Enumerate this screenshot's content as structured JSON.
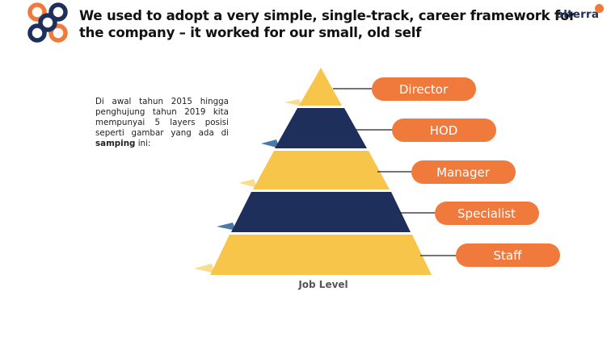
{
  "header": {
    "title_line1": "We used to adopt a very simple, single-track, career framework for",
    "title_line2": "the company – it worked for our small, old self",
    "brand": "alterra",
    "logo_icon": "interlocking-rings-logo",
    "colors": {
      "navy": "#1f2f5c",
      "orange": "#f07a3c",
      "yellow": "#f7c54a"
    }
  },
  "note": {
    "text_before_bold": "Di awal tahun 2015 hingga penghujung tahun 2019 kita mempunyai 5 layers posisi seperti gambar yang ada di ",
    "bold": "samping",
    "text_after_bold": " ini:"
  },
  "pyramid": {
    "levels": [
      {
        "label": "Director",
        "color": "#f7c54a"
      },
      {
        "label": "HOD",
        "color": "#1f2f5c"
      },
      {
        "label": "Manager",
        "color": "#f7c54a"
      },
      {
        "label": "Specialist",
        "color": "#1f2f5c"
      },
      {
        "label": "Staff",
        "color": "#f7c54a"
      }
    ],
    "pill_color": "#f07a3c",
    "caption": "Job Level"
  }
}
